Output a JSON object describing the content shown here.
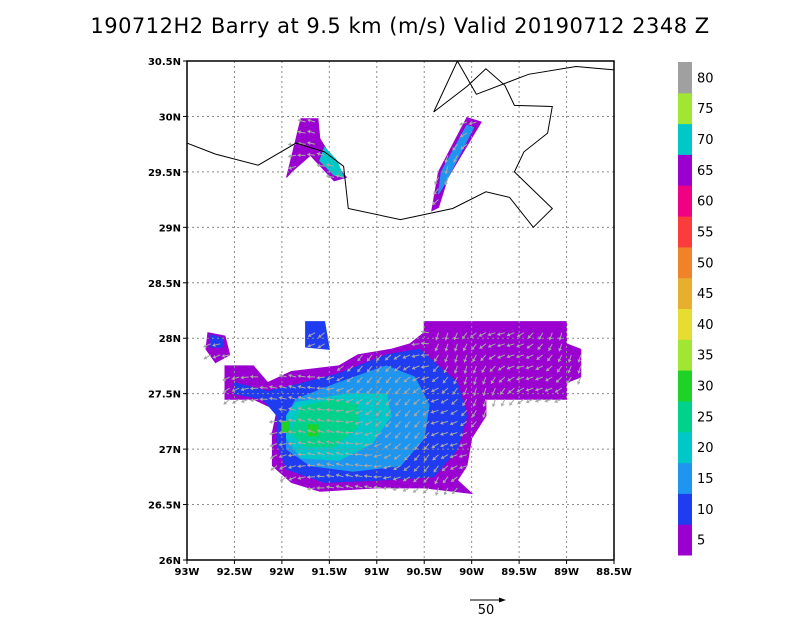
{
  "title": "190712H2 Barry at 9.5 km (m/s) Valid 20190712 2348 Z",
  "chart_data": {
    "type": "heatmap",
    "title": "190712H2 Barry at 9.5 km (m/s) Valid 20190712 2348 Z",
    "xlim": [
      -93.0,
      -88.5
    ],
    "ylim": [
      26.0,
      30.5
    ],
    "x_ticks": [
      {
        "value": -93.0,
        "label": "93W"
      },
      {
        "value": -92.5,
        "label": "92.5W"
      },
      {
        "value": -92.0,
        "label": "92W"
      },
      {
        "value": -91.5,
        "label": "91.5W"
      },
      {
        "value": -91.0,
        "label": "91W"
      },
      {
        "value": -90.5,
        "label": "90.5W"
      },
      {
        "value": -90.0,
        "label": "90W"
      },
      {
        "value": -89.5,
        "label": "89.5W"
      },
      {
        "value": -89.0,
        "label": "89W"
      },
      {
        "value": -88.5,
        "label": "88.5W"
      }
    ],
    "y_ticks": [
      {
        "value": 26.0,
        "label": "26N"
      },
      {
        "value": 26.5,
        "label": "26.5N"
      },
      {
        "value": 27.0,
        "label": "27N"
      },
      {
        "value": 27.5,
        "label": "27.5N"
      },
      {
        "value": 28.0,
        "label": "28N"
      },
      {
        "value": 28.5,
        "label": "28.5N"
      },
      {
        "value": 29.0,
        "label": "29N"
      },
      {
        "value": 29.5,
        "label": "29.5N"
      },
      {
        "value": 30.0,
        "label": "30N"
      },
      {
        "value": 30.5,
        "label": "30.5N"
      }
    ],
    "grid": true,
    "colorbar": [
      {
        "label": "5",
        "color": "#9a00d0"
      },
      {
        "label": "10",
        "color": "#1f3cf0"
      },
      {
        "label": "15",
        "color": "#1e96f0"
      },
      {
        "label": "20",
        "color": "#00c8c8"
      },
      {
        "label": "25",
        "color": "#00d28c"
      },
      {
        "label": "30",
        "color": "#1ed228"
      },
      {
        "label": "35",
        "color": "#a0e632"
      },
      {
        "label": "40",
        "color": "#e6dc32"
      },
      {
        "label": "45",
        "color": "#e6af2d"
      },
      {
        "label": "50",
        "color": "#f08228"
      },
      {
        "label": "55",
        "color": "#fa3c3c"
      },
      {
        "label": "60",
        "color": "#f00082"
      },
      {
        "label": "65",
        "color": "#9a00d0"
      },
      {
        "label": "70",
        "color": "#00c8c8"
      },
      {
        "label": "75",
        "color": "#a0e632"
      },
      {
        "label": "80",
        "color": "#a0a0a0"
      }
    ],
    "reference_vector": {
      "label": "50",
      "value": 50
    },
    "coastline": [
      [
        -93.0,
        29.76
      ],
      [
        -92.7,
        29.66
      ],
      [
        -92.25,
        29.56
      ],
      [
        -91.85,
        29.76
      ],
      [
        -91.55,
        29.68
      ],
      [
        -91.35,
        29.55
      ],
      [
        -91.3,
        29.17
      ],
      [
        -90.75,
        29.07
      ],
      [
        -90.2,
        29.17
      ],
      [
        -89.85,
        29.32
      ],
      [
        -89.6,
        29.27
      ],
      [
        -89.35,
        29.0
      ],
      [
        -89.15,
        29.17
      ],
      [
        -89.55,
        29.5
      ],
      [
        -89.45,
        29.68
      ],
      [
        -89.2,
        29.85
      ],
      [
        -89.15,
        30.09
      ],
      [
        -89.55,
        30.1
      ],
      [
        -89.65,
        30.28
      ],
      [
        -89.85,
        30.43
      ],
      [
        -90.05,
        30.27
      ],
      [
        -90.4,
        30.04
      ],
      [
        -90.15,
        30.5
      ],
      [
        -89.95,
        30.2
      ],
      [
        -89.4,
        30.38
      ],
      [
        -88.9,
        30.45
      ],
      [
        -88.5,
        30.42
      ]
    ],
    "regions": [
      {
        "name": "isolated-cell-west",
        "color": "#9a00d0",
        "polygon": [
          [
            -92.78,
            28.05
          ],
          [
            -92.6,
            28.02
          ],
          [
            -92.55,
            27.85
          ],
          [
            -92.7,
            27.78
          ],
          [
            -92.8,
            27.9
          ]
        ]
      },
      {
        "name": "isolated-cell-west-2",
        "color": "#1f3cf0",
        "polygon": [
          [
            -92.75,
            28.03
          ],
          [
            -92.62,
            28.0
          ],
          [
            -92.62,
            27.92
          ],
          [
            -92.75,
            27.92
          ]
        ]
      },
      {
        "name": "isolated-cell-north",
        "color": "#1f3cf0",
        "polygon": [
          [
            -91.75,
            28.15
          ],
          [
            -91.55,
            28.15
          ],
          [
            -91.5,
            27.9
          ],
          [
            -91.75,
            27.92
          ]
        ]
      },
      {
        "name": "band-north-left",
        "color": "#9a00d0",
        "polygon": [
          [
            -91.8,
            29.98
          ],
          [
            -91.62,
            29.98
          ],
          [
            -91.6,
            29.8
          ],
          [
            -91.42,
            29.55
          ],
          [
            -91.32,
            29.45
          ],
          [
            -91.45,
            29.42
          ],
          [
            -91.7,
            29.65
          ],
          [
            -91.9,
            29.5
          ],
          [
            -91.95,
            29.45
          ],
          [
            -91.85,
            29.8
          ]
        ]
      },
      {
        "name": "band-north-left-cyan",
        "color": "#00c8c8",
        "polygon": [
          [
            -91.55,
            29.72
          ],
          [
            -91.42,
            29.6
          ],
          [
            -91.35,
            29.45
          ],
          [
            -91.45,
            29.47
          ],
          [
            -91.6,
            29.6
          ]
        ]
      },
      {
        "name": "band-north-right",
        "color": "#9a00d0",
        "polygon": [
          [
            -90.05,
            29.99
          ],
          [
            -89.9,
            29.95
          ],
          [
            -90.25,
            29.45
          ],
          [
            -90.35,
            29.18
          ],
          [
            -90.42,
            29.15
          ],
          [
            -90.35,
            29.5
          ]
        ]
      },
      {
        "name": "band-north-right-blue",
        "color": "#1e96f0",
        "polygon": [
          [
            -90.05,
            29.92
          ],
          [
            -89.98,
            29.9
          ],
          [
            -90.28,
            29.4
          ],
          [
            -90.35,
            29.3
          ],
          [
            -90.32,
            29.5
          ]
        ]
      },
      {
        "name": "main-outer",
        "color": "#9a00d0",
        "polygon": [
          [
            -92.6,
            27.75
          ],
          [
            -92.3,
            27.75
          ],
          [
            -92.15,
            27.6
          ],
          [
            -91.9,
            27.7
          ],
          [
            -91.4,
            27.75
          ],
          [
            -91.2,
            27.85
          ],
          [
            -90.85,
            27.9
          ],
          [
            -90.65,
            27.95
          ],
          [
            -90.5,
            28.05
          ],
          [
            -90.5,
            28.15
          ],
          [
            -90.0,
            28.15
          ],
          [
            -89.0,
            28.15
          ],
          [
            -89.0,
            27.95
          ],
          [
            -88.85,
            27.9
          ],
          [
            -88.85,
            27.65
          ],
          [
            -89.0,
            27.6
          ],
          [
            -89.0,
            27.45
          ],
          [
            -89.85,
            27.45
          ],
          [
            -89.85,
            27.3
          ],
          [
            -90.0,
            27.1
          ],
          [
            -90.05,
            26.85
          ],
          [
            -90.15,
            26.72
          ],
          [
            -90.0,
            26.6
          ],
          [
            -90.5,
            26.65
          ],
          [
            -91.0,
            26.65
          ],
          [
            -91.6,
            26.62
          ],
          [
            -91.9,
            26.7
          ],
          [
            -92.1,
            26.85
          ],
          [
            -92.1,
            27.15
          ],
          [
            -92.05,
            27.35
          ],
          [
            -92.3,
            27.45
          ],
          [
            -92.6,
            27.45
          ]
        ]
      },
      {
        "name": "main-blue",
        "color": "#1f3cf0",
        "polygon": [
          [
            -92.5,
            27.6
          ],
          [
            -92.15,
            27.52
          ],
          [
            -91.85,
            27.58
          ],
          [
            -91.4,
            27.68
          ],
          [
            -90.9,
            27.85
          ],
          [
            -90.55,
            27.9
          ],
          [
            -90.15,
            27.6
          ],
          [
            -90.05,
            27.3
          ],
          [
            -90.15,
            27.0
          ],
          [
            -90.4,
            26.75
          ],
          [
            -91.0,
            26.72
          ],
          [
            -91.55,
            26.7
          ],
          [
            -91.95,
            26.82
          ],
          [
            -92.05,
            27.05
          ],
          [
            -92.05,
            27.3
          ],
          [
            -92.2,
            27.45
          ],
          [
            -92.5,
            27.5
          ]
        ]
      },
      {
        "name": "main-lightblue",
        "color": "#1e96f0",
        "polygon": [
          [
            -91.85,
            27.45
          ],
          [
            -91.4,
            27.6
          ],
          [
            -90.9,
            27.75
          ],
          [
            -90.6,
            27.65
          ],
          [
            -90.45,
            27.4
          ],
          [
            -90.5,
            27.1
          ],
          [
            -90.75,
            26.85
          ],
          [
            -91.25,
            26.8
          ],
          [
            -91.7,
            26.85
          ],
          [
            -91.95,
            27.0
          ],
          [
            -91.95,
            27.3
          ]
        ]
      },
      {
        "name": "main-cyan",
        "color": "#00c8c8",
        "polygon": [
          [
            -91.85,
            27.42
          ],
          [
            -91.3,
            27.5
          ],
          [
            -90.9,
            27.5
          ],
          [
            -90.85,
            27.3
          ],
          [
            -91.05,
            27.05
          ],
          [
            -91.4,
            26.9
          ],
          [
            -91.8,
            26.92
          ],
          [
            -91.95,
            27.1
          ],
          [
            -91.95,
            27.3
          ]
        ]
      },
      {
        "name": "main-teal",
        "color": "#00d28c",
        "polygon": [
          [
            -91.8,
            27.38
          ],
          [
            -91.45,
            27.45
          ],
          [
            -91.2,
            27.4
          ],
          [
            -91.2,
            27.2
          ],
          [
            -91.45,
            27.02
          ],
          [
            -91.75,
            27.02
          ],
          [
            -91.9,
            27.15
          ]
        ]
      },
      {
        "name": "main-green",
        "color": "#1ed228",
        "polygon": [
          [
            -91.72,
            27.22
          ],
          [
            -91.62,
            27.22
          ],
          [
            -91.62,
            27.12
          ],
          [
            -91.72,
            27.12
          ]
        ]
      },
      {
        "name": "main-green-2",
        "color": "#1ed228",
        "polygon": [
          [
            -92.0,
            27.25
          ],
          [
            -91.92,
            27.25
          ],
          [
            -91.92,
            27.15
          ],
          [
            -92.0,
            27.15
          ]
        ]
      }
    ]
  }
}
